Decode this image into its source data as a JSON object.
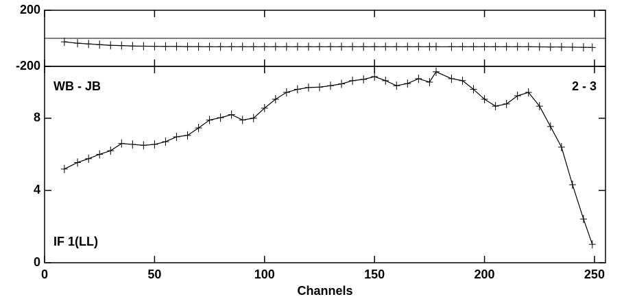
{
  "chart_data": [
    {
      "type": "line",
      "x": [
        9,
        15,
        20,
        25,
        30,
        35,
        40,
        45,
        50,
        55,
        60,
        65,
        70,
        75,
        80,
        85,
        90,
        95,
        100,
        105,
        110,
        115,
        120,
        125,
        130,
        135,
        140,
        145,
        150,
        155,
        160,
        165,
        170,
        175,
        178,
        185,
        190,
        195,
        200,
        205,
        210,
        215,
        220,
        225,
        230,
        235,
        240,
        245,
        249
      ],
      "series": [
        {
          "color": "#000000",
          "values": [
            -25,
            -35,
            -40,
            -45,
            -50,
            -52,
            -55,
            -56,
            -57,
            -58,
            -58,
            -59,
            -59,
            -60,
            -60,
            -60,
            -60,
            -60,
            -60,
            -60,
            -60,
            -60,
            -60,
            -60,
            -60,
            -60,
            -60,
            -60,
            -60,
            -60,
            -60,
            -60,
            -60,
            -60,
            -60,
            -60,
            -60,
            -60,
            -60,
            -60,
            -60,
            -60,
            -60,
            -61,
            -62,
            -62,
            -63,
            -64,
            -65
          ]
        }
      ],
      "xlim": [
        0,
        255
      ],
      "xticks": [
        0,
        50,
        100,
        150,
        200,
        250
      ],
      "ylim": [
        -200,
        200
      ],
      "yticks": [
        -200,
        200
      ]
    },
    {
      "type": "line",
      "x": [
        9,
        15,
        20,
        25,
        30,
        35,
        40,
        45,
        50,
        55,
        60,
        65,
        70,
        75,
        80,
        85,
        90,
        95,
        100,
        105,
        110,
        115,
        120,
        125,
        130,
        135,
        140,
        145,
        150,
        155,
        160,
        165,
        170,
        175,
        178,
        185,
        190,
        195,
        200,
        205,
        210,
        215,
        220,
        225,
        230,
        235,
        240,
        245,
        249
      ],
      "series": [
        {
          "color": "#000000",
          "values": [
            5.19,
            5.55,
            5.76,
            6.0,
            6.2,
            6.6,
            6.55,
            6.5,
            6.55,
            6.7,
            6.97,
            7.05,
            7.46,
            7.9,
            8.03,
            8.2,
            7.9,
            8.0,
            8.56,
            9.05,
            9.43,
            9.6,
            9.7,
            9.72,
            9.8,
            9.9,
            10.08,
            10.15,
            10.3,
            10.08,
            9.8,
            9.92,
            10.19,
            10.0,
            10.57,
            10.19,
            10.08,
            9.6,
            9.05,
            8.67,
            8.79,
            9.24,
            9.43,
            8.67,
            7.54,
            6.4,
            4.32,
            2.42,
            1.02
          ]
        }
      ],
      "xlim": [
        0,
        255
      ],
      "xticks": [
        0,
        50,
        100,
        150,
        200,
        250
      ],
      "ylim": [
        0,
        10.87
      ],
      "yticks": [
        0,
        4,
        8
      ],
      "xlabel": "Channels",
      "annotations": [
        "WB - JB",
        "2 - 3",
        "IF 1(LL)"
      ]
    }
  ]
}
